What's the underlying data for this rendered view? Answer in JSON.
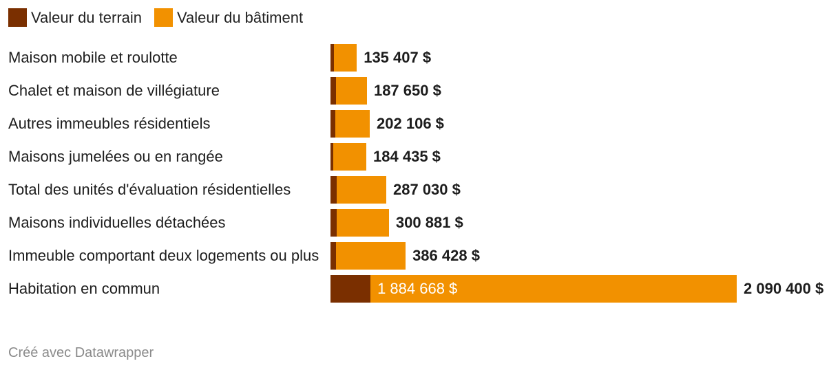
{
  "chart_data": {
    "type": "bar",
    "orientation": "horizontal",
    "stacked": true,
    "legend": {
      "placement": "top-left",
      "entries": [
        {
          "name": "Valeur du terrain",
          "color": "#7a2f00"
        },
        {
          "name": "Valeur du bâtiment",
          "color": "#f29100"
        }
      ]
    },
    "categories": [
      "Maison mobile et roulotte",
      "Chalet et maison de villégiature",
      "Autres immeubles résidentiels",
      "Maisons jumelées ou en rangée",
      "Total des unités d'évaluation résidentielles",
      "Maisons individuelles détachées",
      "Immeuble comportant deux logements ou plus",
      "Habitation en commun"
    ],
    "series": [
      {
        "name": "Valeur du terrain",
        "values": [
          16000,
          27000,
          24000,
          15000,
          31000,
          31000,
          29000,
          205732
        ]
      },
      {
        "name": "Valeur du bâtiment",
        "values": [
          119407,
          160650,
          178106,
          169435,
          256030,
          269881,
          357428,
          1884668
        ]
      }
    ],
    "totals": [
      135407,
      187650,
      202106,
      184435,
      287030,
      300881,
      386428,
      2090400
    ],
    "total_labels": [
      "135 407 $",
      "187 650 $",
      "202 106 $",
      "184 435 $",
      "287 030 $",
      "300 881 $",
      "386 428 $",
      "2 090 400 $"
    ],
    "inbar_labels": [
      "",
      "",
      "",
      "",
      "",
      "",
      "",
      "1 884 668 $"
    ],
    "xlim": [
      0,
      2090400
    ],
    "grid": false
  },
  "footer": {
    "credit": "Créé avec Datawrapper"
  }
}
